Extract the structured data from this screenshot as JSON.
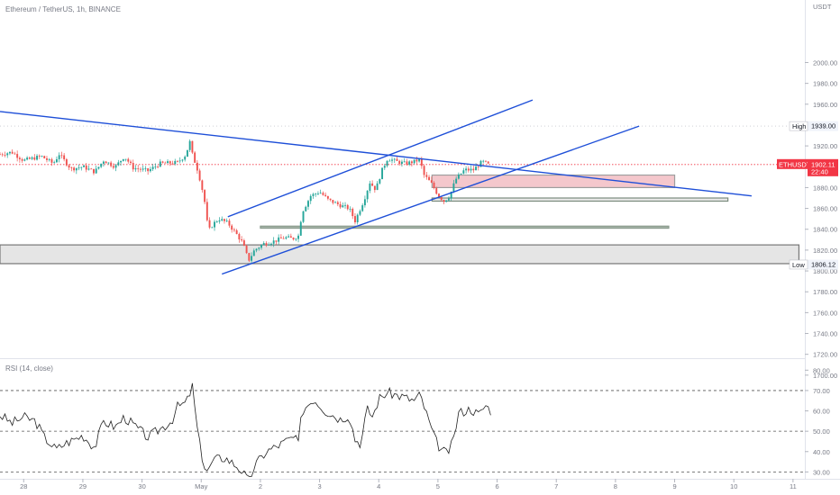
{
  "header": {
    "title": "Ethereum / TetherUS, 1h, BINANCE"
  },
  "rsi": {
    "title": "RSI (14, close)"
  },
  "colors": {
    "up": "#26a69a",
    "down": "#ef5350",
    "trend": "#1e4fd8",
    "rsi_line": "#222222",
    "zone_fill": "#f4c7cc",
    "price_badge": "#f23645"
  },
  "chart_data": [
    {
      "type": "candlestick",
      "title": "Ethereum / TetherUS, 1h, BINANCE",
      "unit": "USDT",
      "ylim": [
        1680,
        2060
      ],
      "y_ticks": [
        1700,
        1720,
        1740,
        1760,
        1780,
        1800,
        1820,
        1840,
        1860,
        1880,
        1900,
        1920,
        1940,
        1960,
        1980,
        2000
      ],
      "y_tick_labels": [
        "1700.00",
        "1720.00",
        "1740.00",
        "1760.00",
        "1780.00",
        "1800.00",
        "1820.00",
        "1840.00",
        "1860.00",
        "1880.00",
        "1900.00",
        "1920.00",
        "1940.00",
        "1960.00",
        "1980.00",
        "2000.00"
      ],
      "x_ticks": [
        {
          "day": 0,
          "label": "28"
        },
        {
          "day": 1,
          "label": "29"
        },
        {
          "day": 2,
          "label": "30"
        },
        {
          "day": 3,
          "label": "May"
        },
        {
          "day": 4,
          "label": "2"
        },
        {
          "day": 5,
          "label": "3"
        },
        {
          "day": 6,
          "label": "4"
        },
        {
          "day": 7,
          "label": "5"
        },
        {
          "day": 8,
          "label": "6"
        },
        {
          "day": 9,
          "label": "7"
        },
        {
          "day": 10,
          "label": "8"
        },
        {
          "day": 11,
          "label": "9"
        },
        {
          "day": 12,
          "label": "10"
        },
        {
          "day": 13,
          "label": "11"
        }
      ],
      "x_range_days": [
        -0.4,
        13.2
      ],
      "close_path": [
        [
          -0.4,
          1912
        ],
        [
          -0.2,
          1914
        ],
        [
          0,
          1906
        ],
        [
          0.3,
          1910
        ],
        [
          0.5,
          1903
        ],
        [
          0.6,
          1912
        ],
        [
          0.8,
          1898
        ],
        [
          1.0,
          1900
        ],
        [
          1.2,
          1895
        ],
        [
          1.35,
          1906
        ],
        [
          1.55,
          1900
        ],
        [
          1.7,
          1910
        ],
        [
          1.85,
          1899
        ],
        [
          2.1,
          1896
        ],
        [
          2.3,
          1903
        ],
        [
          2.6,
          1904
        ],
        [
          2.75,
          1912
        ],
        [
          2.8,
          1926
        ],
        [
          2.85,
          1912
        ],
        [
          2.95,
          1895
        ],
        [
          3.05,
          1870
        ],
        [
          3.12,
          1838
        ],
        [
          3.2,
          1845
        ],
        [
          3.3,
          1850
        ],
        [
          3.45,
          1846
        ],
        [
          3.6,
          1835
        ],
        [
          3.7,
          1827
        ],
        [
          3.8,
          1810
        ],
        [
          3.9,
          1820
        ],
        [
          4.05,
          1826
        ],
        [
          4.2,
          1828
        ],
        [
          4.4,
          1832
        ],
        [
          4.55,
          1831
        ],
        [
          4.65,
          1834
        ],
        [
          4.7,
          1856
        ],
        [
          4.85,
          1872
        ],
        [
          5.0,
          1876
        ],
        [
          5.15,
          1868
        ],
        [
          5.35,
          1863
        ],
        [
          5.5,
          1860
        ],
        [
          5.6,
          1848
        ],
        [
          5.75,
          1868
        ],
        [
          5.85,
          1885
        ],
        [
          5.95,
          1878
        ],
        [
          6.05,
          1896
        ],
        [
          6.15,
          1908
        ],
        [
          6.3,
          1905
        ],
        [
          6.45,
          1903
        ],
        [
          6.6,
          1905
        ],
        [
          6.7,
          1907
        ],
        [
          6.75,
          1893
        ],
        [
          6.9,
          1883
        ],
        [
          7.0,
          1873
        ],
        [
          7.1,
          1867
        ],
        [
          7.2,
          1872
        ],
        [
          7.3,
          1888
        ],
        [
          7.45,
          1897
        ],
        [
          7.6,
          1897
        ],
        [
          7.75,
          1905
        ],
        [
          7.85,
          1902
        ]
      ],
      "extra_candles": [
        {
          "day": 0.9,
          "o": 1900,
          "h": 1905,
          "l": 1890,
          "c": 1895
        }
      ],
      "last_price": {
        "value": 1902.11,
        "label": "ETHUSDT",
        "price_label": "1902.11",
        "countdown": "22:40"
      },
      "high": {
        "label": "High",
        "value": 1939.0,
        "value_label": "1939.00"
      },
      "low": {
        "label": "Low",
        "value": 1806.12,
        "value_label": "1806.12"
      },
      "trendlines": [
        {
          "name": "descending-resistance",
          "from": [
            -0.4,
            1953
          ],
          "to": [
            12.3,
            1872
          ]
        },
        {
          "name": "channel-upper",
          "from": [
            3.45,
            1852
          ],
          "to": [
            8.6,
            1964
          ]
        },
        {
          "name": "channel-lower",
          "from": [
            3.35,
            1797
          ],
          "to": [
            10.4,
            1939
          ]
        }
      ],
      "zones": [
        {
          "name": "pink-supply-zone",
          "x0": 6.9,
          "x1": 11.0,
          "y0": 1880,
          "y1": 1892,
          "fill": "#f4c7cc",
          "stroke": "#9e9e9e"
        },
        {
          "name": "gray-bar-1",
          "x0": 6.9,
          "x1": 11.9,
          "y0": 1867,
          "y1": 1870,
          "fill": "#e9e9e9",
          "stroke": "#7b8c7e"
        },
        {
          "name": "gray-bar-2",
          "x0": 4.0,
          "x1": 10.9,
          "y0": 1841,
          "y1": 1843,
          "fill": "#a6b5a9",
          "stroke": "#8a9a8d"
        },
        {
          "name": "support-zone",
          "x0": -0.4,
          "x1": 13.1,
          "y0": 1807,
          "y1": 1825,
          "fill": "#e5e5e5",
          "stroke": "#777777"
        }
      ]
    },
    {
      "type": "line",
      "title": "RSI (14, close)",
      "ylim": [
        20,
        85
      ],
      "y_ticks": [
        30,
        40,
        50,
        60,
        70,
        80
      ],
      "y_tick_labels": [
        "30.00",
        "40.00",
        "50.00",
        "60.00",
        "70.00",
        "80.00"
      ],
      "levels": [
        70,
        50,
        30
      ],
      "rsi_path": [
        [
          -0.4,
          58
        ],
        [
          -0.2,
          54
        ],
        [
          0,
          57
        ],
        [
          0.2,
          55
        ],
        [
          0.35,
          47
        ],
        [
          0.55,
          41
        ],
        [
          0.7,
          44
        ],
        [
          0.85,
          46
        ],
        [
          1.0,
          48
        ],
        [
          1.2,
          42
        ],
        [
          1.35,
          55
        ],
        [
          1.55,
          52
        ],
        [
          1.7,
          57
        ],
        [
          1.9,
          52
        ],
        [
          2.1,
          47
        ],
        [
          2.3,
          51
        ],
        [
          2.5,
          55
        ],
        [
          2.6,
          62
        ],
        [
          2.75,
          64
        ],
        [
          2.85,
          72
        ],
        [
          2.95,
          47
        ],
        [
          3.05,
          33
        ],
        [
          3.12,
          30
        ],
        [
          3.2,
          36
        ],
        [
          3.4,
          37
        ],
        [
          3.6,
          33
        ],
        [
          3.7,
          30
        ],
        [
          3.8,
          25
        ],
        [
          3.9,
          33
        ],
        [
          4.1,
          40
        ],
        [
          4.3,
          43
        ],
        [
          4.55,
          47
        ],
        [
          4.65,
          44
        ],
        [
          4.7,
          60
        ],
        [
          4.9,
          66
        ],
        [
          5.1,
          60
        ],
        [
          5.35,
          56
        ],
        [
          5.5,
          58
        ],
        [
          5.6,
          46
        ],
        [
          5.7,
          44
        ],
        [
          5.8,
          61
        ],
        [
          5.9,
          57
        ],
        [
          6.0,
          66
        ],
        [
          6.15,
          69
        ],
        [
          6.4,
          67
        ],
        [
          6.6,
          65
        ],
        [
          6.7,
          68
        ],
        [
          6.8,
          59
        ],
        [
          6.95,
          46
        ],
        [
          7.05,
          41
        ],
        [
          7.15,
          39
        ],
        [
          7.25,
          44
        ],
        [
          7.35,
          59
        ],
        [
          7.55,
          61
        ],
        [
          7.7,
          58
        ],
        [
          7.8,
          63
        ],
        [
          7.9,
          60
        ]
      ]
    }
  ]
}
